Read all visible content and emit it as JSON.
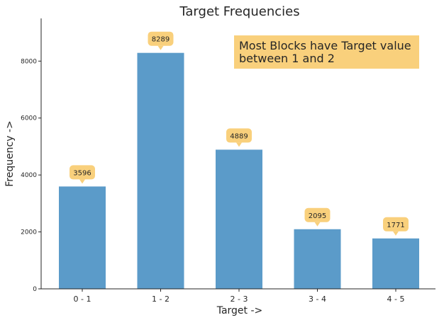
{
  "chart_data": {
    "type": "bar",
    "title": "Target Frequencies",
    "xlabel": "Target  ->",
    "ylabel": "Frequency  ->",
    "categories": [
      "0 - 1",
      "1 - 2",
      "2 - 3",
      "3 - 4",
      "4 - 5"
    ],
    "values": [
      3596,
      8289,
      4889,
      2095,
      1771
    ],
    "data_labels": [
      "3596",
      "8289",
      "4889",
      "2095",
      "1771"
    ],
    "ylim": [
      0,
      9500
    ],
    "yticks": [
      0,
      2000,
      4000,
      6000,
      8000
    ],
    "ytick_labels": [
      "0",
      "2000",
      "4000",
      "6000",
      "8000"
    ],
    "grid": false,
    "bar_color": "#5b9bc9",
    "label_bubble_color": "#f9d07c",
    "annotation": {
      "lines": [
        "Most Blocks have Target value",
        "between 1 and 2"
      ],
      "background": "#f9d07c"
    }
  }
}
